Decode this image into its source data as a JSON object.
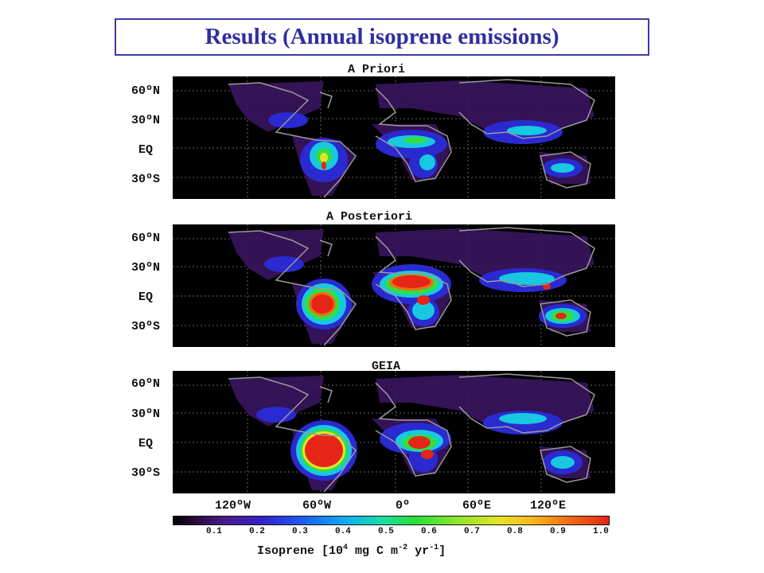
{
  "title": "Results (Annual isoprene emissions)",
  "panels": [
    {
      "title": "A Priori",
      "lat_labels": [
        "60ºN",
        "30ºN",
        "EQ",
        "30ºS"
      ]
    },
    {
      "title": "A Posteriori",
      "lat_labels": [
        "60ºN",
        "30ºN",
        "EQ",
        "30ºS"
      ]
    },
    {
      "title": "GEIA",
      "lat_labels": [
        "60ºN",
        "30ºN",
        "EQ",
        "30ºS"
      ]
    }
  ],
  "lon_labels": [
    "120ºW",
    "60ºW",
    "0º",
    "60ºE",
    "120ºE"
  ],
  "colorbar": {
    "ticks": [
      "0.1",
      "0.2",
      "0.3",
      "0.4",
      "0.5",
      "0.6",
      "0.7",
      "0.8",
      "0.9",
      "1.0"
    ],
    "label_prefix": "Isoprene [10",
    "label_exp1": "4",
    "label_mid": " mg C m",
    "label_exp2": "-2",
    "label_mid2": " yr",
    "label_exp3": "-1",
    "label_suffix": "]",
    "colors": [
      "#000000",
      "#4b1b8a",
      "#3322c8",
      "#10b0f0",
      "#26e03a",
      "#e8e425",
      "#f26a15",
      "#e52516"
    ]
  }
}
